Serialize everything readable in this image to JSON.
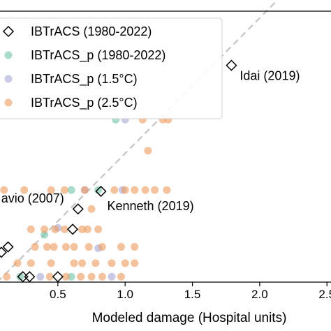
{
  "chart_data": {
    "type": "scatter",
    "xlabel": "Modeled damage (Hospital units)",
    "x_ticks": [
      "0.5",
      "1.0",
      "1.5",
      "2.0",
      "2.5"
    ],
    "x_tick_values": [
      0.5,
      1.0,
      1.5,
      2.0,
      2.5
    ],
    "xlim": [
      0.07,
      2.53
    ],
    "ylim": [
      0.05,
      2.05
    ],
    "grid": false,
    "legend_position": "top-left",
    "reference_line": {
      "style": "dashed",
      "color": "#c4c4c4",
      "slope": 1
    },
    "colors": {
      "ibtracs": "#000000",
      "p_hist": "#6fc3a6",
      "p_15": "#a9a6d6",
      "p_25": "#ec9a5c"
    },
    "legend": [
      {
        "key": "ibtracs",
        "label": "IBTrACS (1980-2022)",
        "marker": "diamond"
      },
      {
        "key": "p_hist",
        "label": "IBTrACS_p (1980-2022)",
        "marker": "circle"
      },
      {
        "key": "p_15",
        "label": "IBTrACS_p (1.5°C)",
        "marker": "circle"
      },
      {
        "key": "p_25",
        "label": "IBTrACS_p (2.5°C)",
        "marker": "circle"
      }
    ],
    "series": [
      {
        "key": "ibtracs",
        "marker": "diamond",
        "points": [
          [
            1.79,
            1.65
          ],
          [
            0.82,
            0.72
          ],
          [
            0.65,
            0.59
          ],
          [
            0.61,
            0.44
          ],
          [
            0.13,
            0.31
          ],
          [
            0.08,
            0.27
          ],
          [
            0.24,
            0.09
          ],
          [
            0.29,
            0.09
          ],
          [
            0.5,
            0.09
          ]
        ]
      },
      {
        "key": "p_hist",
        "marker": "circle",
        "points": [
          [
            0.93,
            1.25
          ],
          [
            0.8,
            0.73
          ],
          [
            0.6,
            0.73
          ],
          [
            0.4,
            0.4
          ],
          [
            0.22,
            0.09
          ],
          [
            0.6,
            0.09
          ]
        ]
      },
      {
        "key": "p_15",
        "marker": "circle",
        "points": [
          [
            1.0,
            1.25
          ],
          [
            0.7,
            0.73
          ],
          [
            0.98,
            0.73
          ],
          [
            0.5,
            0.45
          ],
          [
            0.8,
            0.3
          ],
          [
            0.37,
            0.09
          ],
          [
            0.9,
            0.09
          ]
        ]
      },
      {
        "key": "p_25",
        "marker": "circle",
        "points": [
          [
            1.13,
            1.25
          ],
          [
            1.28,
            1.25
          ],
          [
            1.32,
            1.25
          ],
          [
            1.17,
            1.02
          ],
          [
            1.15,
            0.73
          ],
          [
            1.31,
            0.73
          ],
          [
            0.1,
            0.73
          ],
          [
            0.25,
            0.73
          ],
          [
            0.45,
            0.73
          ],
          [
            0.55,
            0.73
          ],
          [
            0.7,
            0.73
          ],
          [
            0.92,
            0.73
          ],
          [
            1.0,
            0.73
          ],
          [
            1.07,
            0.73
          ],
          [
            1.22,
            0.73
          ],
          [
            0.75,
            0.59
          ],
          [
            0.3,
            0.44
          ],
          [
            0.4,
            0.44
          ],
          [
            0.48,
            0.44
          ],
          [
            0.55,
            0.44
          ],
          [
            0.68,
            0.44
          ],
          [
            0.72,
            0.44
          ],
          [
            0.8,
            0.44
          ],
          [
            0.33,
            0.31
          ],
          [
            0.42,
            0.31
          ],
          [
            0.47,
            0.31
          ],
          [
            0.56,
            0.31
          ],
          [
            0.62,
            0.31
          ],
          [
            0.73,
            0.31
          ],
          [
            0.83,
            0.31
          ],
          [
            0.97,
            0.31
          ],
          [
            1.07,
            0.31
          ],
          [
            0.2,
            0.19
          ],
          [
            0.3,
            0.19
          ],
          [
            0.45,
            0.19
          ],
          [
            0.62,
            0.19
          ],
          [
            0.68,
            0.19
          ],
          [
            0.78,
            0.19
          ],
          [
            0.9,
            0.19
          ],
          [
            1.0,
            0.19
          ],
          [
            1.07,
            0.19
          ],
          [
            0.12,
            0.09
          ],
          [
            0.44,
            0.09
          ],
          [
            0.56,
            0.09
          ],
          [
            0.67,
            0.09
          ],
          [
            0.75,
            0.09
          ],
          [
            0.83,
            0.09
          ],
          [
            0.97,
            0.09
          ]
        ]
      }
    ],
    "annotations": [
      {
        "text": "Idai (2019)",
        "x": 1.79,
        "y": 1.65
      },
      {
        "text": "Kenneth (2019)",
        "x": 0.82,
        "y": 0.72
      },
      {
        "text": "avio (2007)",
        "x": 0.65,
        "y": 0.59
      }
    ]
  }
}
